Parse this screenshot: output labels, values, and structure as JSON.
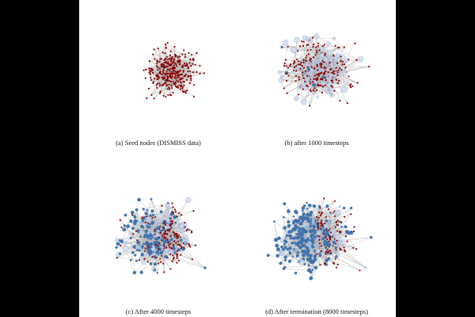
{
  "figure": {
    "panels": [
      {
        "id": "a",
        "caption": "(a) Seed nodes (DISMISS data)",
        "blue_fraction": 0.0,
        "light_fraction": 0.0
      },
      {
        "id": "b",
        "caption": "(b) after 1000 timesteps",
        "blue_fraction": 0.02,
        "light_fraction": 0.28
      },
      {
        "id": "c",
        "caption": "(c) After 4000 timesteps",
        "blue_fraction": 0.35,
        "light_fraction": 0.18
      },
      {
        "id": "d",
        "caption": "(d) After termination (8000 timesteps)",
        "blue_fraction": 0.55,
        "light_fraction": 0.12
      }
    ]
  },
  "colors": {
    "page_background": "#000000",
    "figure_background": "#ffffff",
    "edge": "#b0b0b0",
    "seed_node": "#8b0000",
    "propagated_node": "#3f74ad",
    "light_node": "#c9d6ea"
  }
}
